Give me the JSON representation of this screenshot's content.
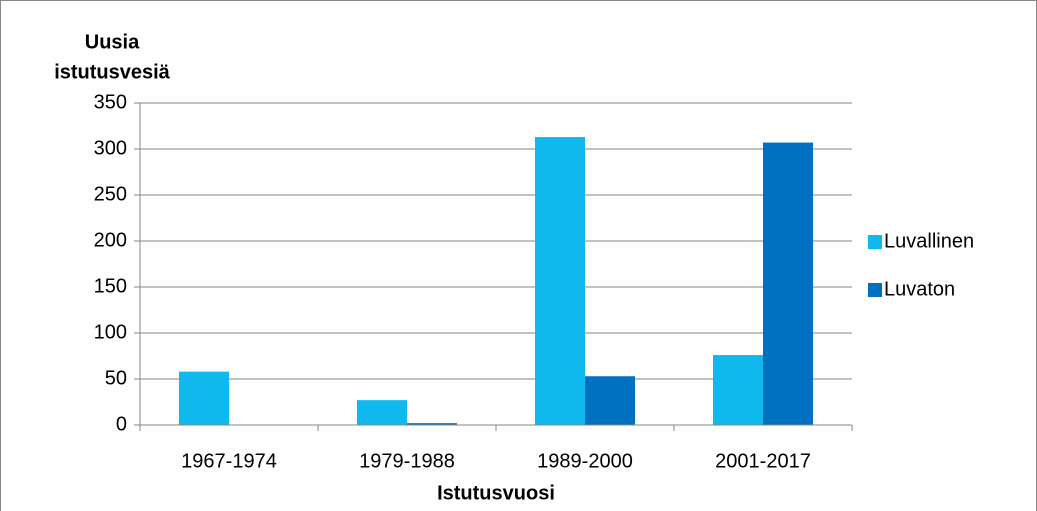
{
  "chart_data": {
    "type": "bar",
    "ylabel": [
      "Uusia",
      "istutusvesiä"
    ],
    "xlabel": "Istutusvuosi",
    "categories": [
      "1967-1974",
      "1979-1988",
      "1989-2000",
      "2001-2017"
    ],
    "series": [
      {
        "name": "Luvallinen",
        "color": "#0fb9ee",
        "values": [
          58,
          27,
          313,
          76
        ]
      },
      {
        "name": "Luvaton",
        "color": "#0070c0",
        "values": [
          0,
          2,
          53,
          307
        ]
      }
    ],
    "ylim": [
      0,
      350
    ],
    "yticks": [
      0,
      50,
      100,
      150,
      200,
      250,
      300,
      350
    ],
    "grid": true,
    "legend": "right"
  }
}
